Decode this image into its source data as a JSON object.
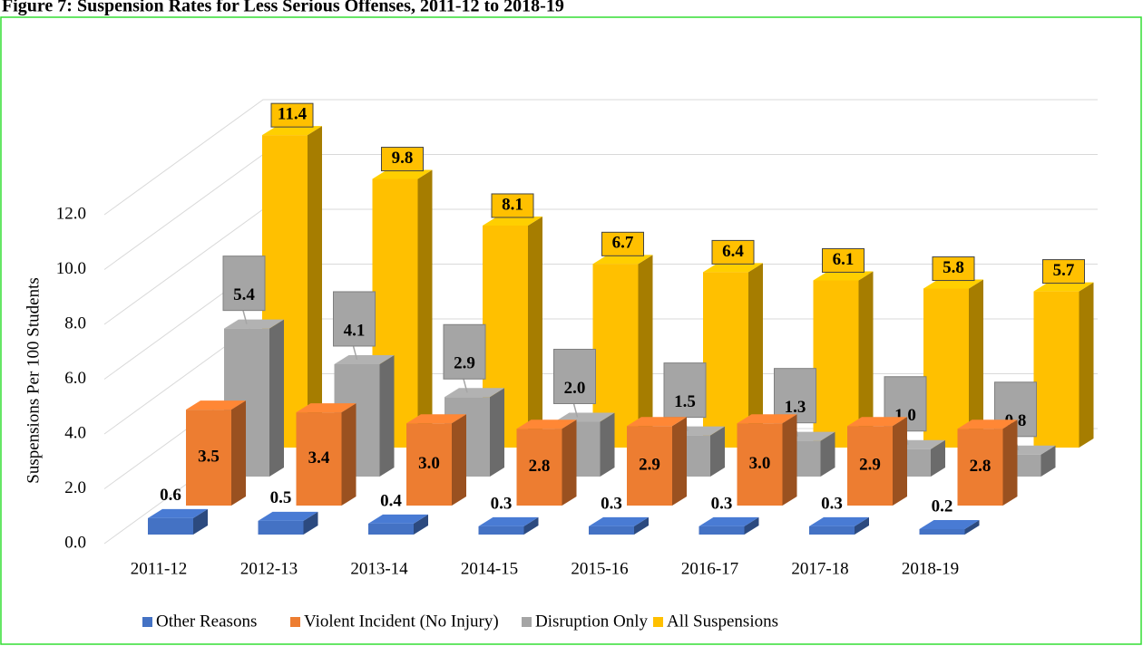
{
  "chart_data": {
    "type": "bar3d",
    "title": "Figure 7: Suspension Rates for Less Serious Offenses, 2011-12 to 2018-19",
    "y_label": "Suspensions Per 100 Students",
    "categories": [
      "2011-12",
      "2012-13",
      "2013-14",
      "2014-15",
      "2015-16",
      "2016-17",
      "2017-18",
      "2018-19"
    ],
    "series": [
      {
        "name": "Other Reasons",
        "color": "#4472c4",
        "values": [
          0.6,
          0.5,
          0.4,
          0.3,
          0.3,
          0.3,
          0.3,
          0.2
        ]
      },
      {
        "name": "Violent Incident (No Injury)",
        "color": "#ed7d31",
        "values": [
          3.5,
          3.4,
          3,
          2.8,
          2.9,
          3,
          2.9,
          2.8
        ],
        "value_labels": [
          "3.5",
          "3.4",
          "3.0",
          "2.8",
          "2.9",
          "3.0",
          "2.9",
          "2.8"
        ]
      },
      {
        "name": "Disruption Only",
        "color": "#a5a5a5",
        "values": [
          5.4,
          4.1,
          2.9,
          2,
          1.5,
          1.3,
          1,
          0.8
        ],
        "value_labels": [
          "5.4",
          "4.1",
          "2.9",
          "2.0",
          "1.5",
          "1.3",
          "1.0",
          "0.8"
        ]
      },
      {
        "name": "All Suspensions",
        "color": "#ffc000",
        "values": [
          11.4,
          9.8,
          8.1,
          6.7,
          6.4,
          6.1,
          5.8,
          5.7
        ]
      }
    ],
    "ylim": [
      0,
      12
    ],
    "yticks": [
      {
        "value": 0,
        "label": "0.0"
      },
      {
        "value": 2,
        "label": "2.0"
      },
      {
        "value": 4,
        "label": "4.0"
      },
      {
        "value": 6,
        "label": "6.0"
      },
      {
        "value": 8,
        "label": "8.0"
      },
      {
        "value": 10,
        "label": "10.0"
      },
      {
        "value": 12,
        "label": "12.0"
      }
    ],
    "grid": true,
    "legend": "bottom"
  }
}
